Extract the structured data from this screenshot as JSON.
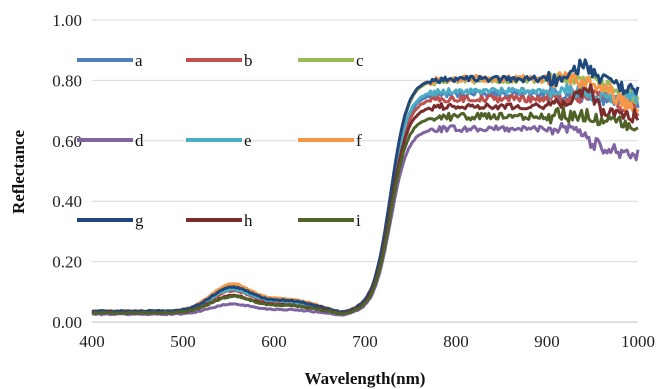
{
  "chart_data": {
    "type": "line",
    "title": "",
    "xlabel": "Wavelength(nm)",
    "ylabel": "Reflectance",
    "xlim": [
      400,
      1000
    ],
    "ylim": [
      0,
      1
    ],
    "x_ticks": [
      "400",
      "500",
      "600",
      "700",
      "800",
      "900",
      "1000"
    ],
    "y_ticks": [
      "0.00",
      "0.20",
      "0.40",
      "0.60",
      "0.80",
      "1.00"
    ],
    "grid": "horizontal",
    "legend_position": "inside-left",
    "series": [
      {
        "name": "a",
        "color": "#4F81BD",
        "base": 0.034,
        "peak": 0.105,
        "plateau": 0.755,
        "jitter": 0.01,
        "tail": [
          [
            920,
            0.75
          ],
          [
            960,
            0.74
          ],
          [
            1000,
            0.73
          ]
        ]
      },
      {
        "name": "b",
        "color": "#C0504D",
        "base": 0.032,
        "peak": 0.1,
        "plateau": 0.74,
        "jitter": 0.012,
        "tail": [
          [
            920,
            0.74
          ],
          [
            950,
            0.76
          ],
          [
            1000,
            0.7
          ]
        ]
      },
      {
        "name": "c",
        "color": "#9BBB59",
        "base": 0.035,
        "peak": 0.115,
        "plateau": 0.8,
        "jitter": 0.01,
        "tail": [
          [
            920,
            0.8
          ],
          [
            960,
            0.79
          ],
          [
            1000,
            0.74
          ]
        ]
      },
      {
        "name": "d",
        "color": "#8064A2",
        "base": 0.026,
        "peak": 0.058,
        "plateau": 0.64,
        "jitter": 0.01,
        "tail": [
          [
            930,
            0.65
          ],
          [
            950,
            0.59
          ],
          [
            1000,
            0.55
          ]
        ]
      },
      {
        "name": "e",
        "color": "#4BACC6",
        "base": 0.034,
        "peak": 0.105,
        "plateau": 0.765,
        "jitter": 0.01,
        "tail": [
          [
            920,
            0.77
          ],
          [
            960,
            0.75
          ],
          [
            1000,
            0.74
          ]
        ]
      },
      {
        "name": "f",
        "color": "#F79646",
        "base": 0.036,
        "peak": 0.122,
        "plateau": 0.805,
        "jitter": 0.012,
        "tail": [
          [
            920,
            0.8
          ],
          [
            960,
            0.78
          ],
          [
            1000,
            0.7
          ]
        ]
      },
      {
        "name": "g",
        "color": "#1F497D",
        "base": 0.036,
        "peak": 0.112,
        "plateau": 0.805,
        "jitter": 0.01,
        "tail": [
          [
            920,
            0.8
          ],
          [
            940,
            0.86
          ],
          [
            960,
            0.8
          ],
          [
            1000,
            0.76
          ]
        ]
      },
      {
        "name": "h",
        "color": "#7B2C2C",
        "base": 0.031,
        "peak": 0.085,
        "plateau": 0.715,
        "jitter": 0.01,
        "tail": [
          [
            920,
            0.72
          ],
          [
            945,
            0.78
          ],
          [
            960,
            0.7
          ],
          [
            1000,
            0.68
          ]
        ]
      },
      {
        "name": "i",
        "color": "#4F6228",
        "base": 0.03,
        "peak": 0.082,
        "plateau": 0.68,
        "jitter": 0.012,
        "tail": [
          [
            920,
            0.69
          ],
          [
            950,
            0.68
          ],
          [
            1000,
            0.64
          ]
        ]
      }
    ]
  }
}
